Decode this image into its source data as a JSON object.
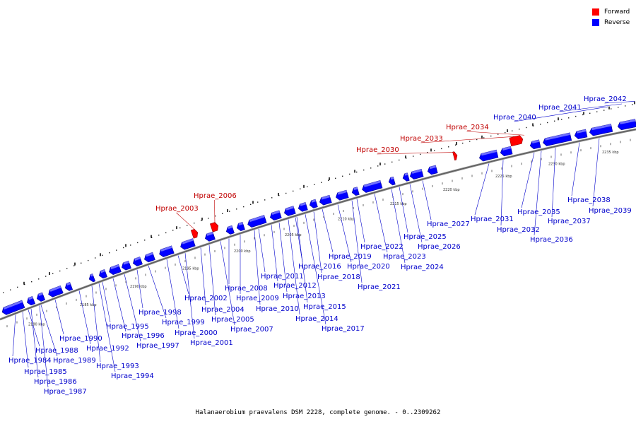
{
  "legend": {
    "forward": {
      "label": "Forward",
      "color": "#ff0000"
    },
    "reverse": {
      "label": "Reverse",
      "color": "#0000ff"
    }
  },
  "caption": "Halanaerobium praevalens DSM 2228, complete genome. - 0..2309262",
  "scale_labels": [
    "2180 kbp",
    "2185 kbp",
    "2190 kbp",
    "2195 kbp",
    "2200 kbp",
    "2205 kbp",
    "2210 kbp",
    "2215 kbp",
    "2220 kbp",
    "2225 kbp",
    "2230 kbp",
    "2235 kbp"
  ],
  "genes": [
    {
      "name": "Hprae_1984",
      "strand": "reverse"
    },
    {
      "name": "Hprae_1985",
      "strand": "reverse"
    },
    {
      "name": "Hprae_1986",
      "strand": "reverse"
    },
    {
      "name": "Hprae_1987",
      "strand": "reverse"
    },
    {
      "name": "Hprae_1988",
      "strand": "reverse"
    },
    {
      "name": "Hprae_1989",
      "strand": "reverse"
    },
    {
      "name": "Hprae_1990",
      "strand": "reverse"
    },
    {
      "name": "Hprae_1992",
      "strand": "reverse"
    },
    {
      "name": "Hprae_1993",
      "strand": "reverse"
    },
    {
      "name": "Hprae_1994",
      "strand": "reverse"
    },
    {
      "name": "Hprae_1995",
      "strand": "reverse"
    },
    {
      "name": "Hprae_1996",
      "strand": "reverse"
    },
    {
      "name": "Hprae_1997",
      "strand": "reverse"
    },
    {
      "name": "Hprae_1998",
      "strand": "reverse"
    },
    {
      "name": "Hprae_1999",
      "strand": "reverse"
    },
    {
      "name": "Hprae_2000",
      "strand": "reverse"
    },
    {
      "name": "Hprae_2001",
      "strand": "reverse"
    },
    {
      "name": "Hprae_2002",
      "strand": "reverse"
    },
    {
      "name": "Hprae_2003",
      "strand": "forward"
    },
    {
      "name": "Hprae_2004",
      "strand": "reverse"
    },
    {
      "name": "Hprae_2005",
      "strand": "reverse"
    },
    {
      "name": "Hprae_2006",
      "strand": "forward"
    },
    {
      "name": "Hprae_2007",
      "strand": "reverse"
    },
    {
      "name": "Hprae_2008",
      "strand": "reverse"
    },
    {
      "name": "Hprae_2009",
      "strand": "reverse"
    },
    {
      "name": "Hprae_2010",
      "strand": "reverse"
    },
    {
      "name": "Hprae_2011",
      "strand": "reverse"
    },
    {
      "name": "Hprae_2012",
      "strand": "reverse"
    },
    {
      "name": "Hprae_2013",
      "strand": "reverse"
    },
    {
      "name": "Hprae_2014",
      "strand": "reverse"
    },
    {
      "name": "Hprae_2015",
      "strand": "reverse"
    },
    {
      "name": "Hprae_2016",
      "strand": "reverse"
    },
    {
      "name": "Hprae_2017",
      "strand": "reverse"
    },
    {
      "name": "Hprae_2018",
      "strand": "reverse"
    },
    {
      "name": "Hprae_2019",
      "strand": "reverse"
    },
    {
      "name": "Hprae_2020",
      "strand": "reverse"
    },
    {
      "name": "Hprae_2021",
      "strand": "reverse"
    },
    {
      "name": "Hprae_2022",
      "strand": "reverse"
    },
    {
      "name": "Hprae_2023",
      "strand": "reverse"
    },
    {
      "name": "Hprae_2024",
      "strand": "reverse"
    },
    {
      "name": "Hprae_2025",
      "strand": "reverse"
    },
    {
      "name": "Hprae_2026",
      "strand": "reverse"
    },
    {
      "name": "Hprae_2027",
      "strand": "reverse"
    },
    {
      "name": "Hprae_2030",
      "strand": "forward"
    },
    {
      "name": "Hprae_2031",
      "strand": "reverse"
    },
    {
      "name": "Hprae_2032",
      "strand": "reverse"
    },
    {
      "name": "Hprae_2033",
      "strand": "forward"
    },
    {
      "name": "Hprae_2034",
      "strand": "forward"
    },
    {
      "name": "Hprae_2035",
      "strand": "reverse"
    },
    {
      "name": "Hprae_2036",
      "strand": "reverse"
    },
    {
      "name": "Hprae_2037",
      "strand": "reverse"
    },
    {
      "name": "Hprae_2038",
      "strand": "reverse"
    },
    {
      "name": "Hprae_2039",
      "strand": "reverse"
    },
    {
      "name": "Hprae_2040",
      "strand": "reverse"
    },
    {
      "name": "Hprae_2041",
      "strand": "reverse"
    },
    {
      "name": "Hprae_2042",
      "strand": "reverse"
    }
  ]
}
